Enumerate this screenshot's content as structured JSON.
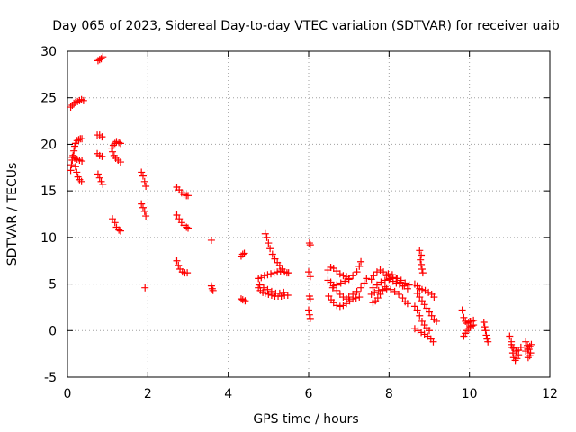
{
  "chart_data": {
    "type": "scatter",
    "title": "Day 065 of 2023, Sidereal Day-to-day VTEC variation (SDTVAR) for receiver uaib",
    "xlabel": "GPS time / hours",
    "ylabel": "SDTVAR / TECUs",
    "xlim": [
      0,
      12
    ],
    "ylim": [
      -5,
      30
    ],
    "xticks": [
      0,
      2,
      4,
      6,
      8,
      10,
      12
    ],
    "yticks": [
      -5,
      0,
      5,
      10,
      15,
      20,
      25,
      30
    ],
    "xtick_labels": [
      "0",
      "2",
      "4",
      "6",
      "8",
      "10",
      "12"
    ],
    "ytick_labels": [
      "-5",
      "0",
      "5",
      "10",
      "15",
      "20",
      "25",
      "30"
    ],
    "grid": true,
    "marker": "+",
    "marker_color": "#ff0000",
    "series": [
      {
        "name": "SDTVAR",
        "points": [
          [
            0.08,
            24.0
          ],
          [
            0.12,
            24.2
          ],
          [
            0.16,
            24.4
          ],
          [
            0.2,
            24.5
          ],
          [
            0.25,
            24.6
          ],
          [
            0.3,
            24.7
          ],
          [
            0.35,
            24.8
          ],
          [
            0.4,
            24.7
          ],
          [
            0.08,
            17.2
          ],
          [
            0.1,
            17.8
          ],
          [
            0.12,
            18.3
          ],
          [
            0.14,
            18.8
          ],
          [
            0.16,
            19.3
          ],
          [
            0.18,
            19.8
          ],
          [
            0.2,
            20.1
          ],
          [
            0.24,
            20.4
          ],
          [
            0.28,
            20.5
          ],
          [
            0.32,
            20.6
          ],
          [
            0.36,
            20.6
          ],
          [
            0.12,
            18.6
          ],
          [
            0.18,
            18.5
          ],
          [
            0.24,
            18.4
          ],
          [
            0.3,
            18.3
          ],
          [
            0.36,
            18.2
          ],
          [
            0.2,
            17.6
          ],
          [
            0.23,
            17.0
          ],
          [
            0.26,
            16.5
          ],
          [
            0.3,
            16.2
          ],
          [
            0.35,
            16.0
          ],
          [
            0.76,
            29.0
          ],
          [
            0.8,
            29.1
          ],
          [
            0.84,
            29.2
          ],
          [
            0.88,
            29.4
          ],
          [
            0.74,
            21.0
          ],
          [
            0.8,
            21.0
          ],
          [
            0.86,
            20.8
          ],
          [
            0.74,
            19.0
          ],
          [
            0.8,
            18.8
          ],
          [
            0.86,
            18.7
          ],
          [
            0.76,
            16.8
          ],
          [
            0.8,
            16.4
          ],
          [
            0.84,
            16.0
          ],
          [
            0.88,
            15.7
          ],
          [
            1.1,
            19.6
          ],
          [
            1.14,
            19.9
          ],
          [
            1.18,
            20.1
          ],
          [
            1.22,
            20.3
          ],
          [
            1.28,
            20.2
          ],
          [
            1.32,
            20.1
          ],
          [
            1.12,
            19.2
          ],
          [
            1.16,
            18.8
          ],
          [
            1.2,
            18.5
          ],
          [
            1.26,
            18.3
          ],
          [
            1.32,
            18.1
          ],
          [
            1.12,
            12.0
          ],
          [
            1.18,
            11.6
          ],
          [
            1.22,
            11.1
          ],
          [
            1.28,
            10.8
          ],
          [
            1.32,
            10.7
          ],
          [
            1.84,
            17.0
          ],
          [
            1.88,
            16.6
          ],
          [
            1.92,
            16.0
          ],
          [
            1.95,
            15.5
          ],
          [
            1.84,
            13.6
          ],
          [
            1.88,
            13.2
          ],
          [
            1.92,
            12.8
          ],
          [
            1.95,
            12.3
          ],
          [
            1.93,
            4.6
          ],
          [
            2.72,
            15.4
          ],
          [
            2.78,
            15.1
          ],
          [
            2.84,
            14.8
          ],
          [
            2.9,
            14.6
          ],
          [
            2.96,
            14.5
          ],
          [
            3.0,
            14.5
          ],
          [
            2.72,
            12.4
          ],
          [
            2.78,
            12.0
          ],
          [
            2.84,
            11.6
          ],
          [
            2.9,
            11.3
          ],
          [
            2.96,
            11.1
          ],
          [
            3.0,
            11.0
          ],
          [
            2.72,
            7.5
          ],
          [
            2.76,
            7.0
          ],
          [
            2.8,
            6.6
          ],
          [
            2.86,
            6.3
          ],
          [
            2.92,
            6.2
          ],
          [
            2.98,
            6.2
          ],
          [
            3.58,
            9.7
          ],
          [
            3.58,
            4.8
          ],
          [
            3.6,
            4.5
          ],
          [
            3.62,
            4.3
          ],
          [
            4.32,
            8.0
          ],
          [
            4.36,
            8.2
          ],
          [
            4.4,
            8.3
          ],
          [
            4.32,
            3.4
          ],
          [
            4.36,
            3.3
          ],
          [
            4.42,
            3.2
          ],
          [
            4.92,
            10.4
          ],
          [
            4.96,
            10.0
          ],
          [
            5.0,
            9.4
          ],
          [
            5.04,
            8.8
          ],
          [
            5.1,
            8.2
          ],
          [
            5.16,
            7.7
          ],
          [
            5.22,
            7.3
          ],
          [
            5.28,
            7.0
          ],
          [
            5.34,
            6.6
          ],
          [
            5.4,
            6.3
          ],
          [
            5.46,
            6.2
          ],
          [
            5.5,
            6.2
          ],
          [
            4.75,
            5.6
          ],
          [
            4.82,
            5.7
          ],
          [
            4.9,
            5.9
          ],
          [
            4.98,
            6.0
          ],
          [
            5.06,
            6.1
          ],
          [
            5.14,
            6.2
          ],
          [
            5.22,
            6.3
          ],
          [
            5.3,
            6.4
          ],
          [
            4.75,
            4.6
          ],
          [
            4.8,
            4.3
          ],
          [
            4.86,
            4.1
          ],
          [
            4.92,
            4.0
          ],
          [
            5.0,
            3.9
          ],
          [
            5.08,
            3.8
          ],
          [
            5.16,
            3.7
          ],
          [
            5.24,
            3.7
          ],
          [
            5.32,
            3.7
          ],
          [
            5.4,
            3.8
          ],
          [
            5.48,
            3.8
          ],
          [
            4.78,
            4.9
          ],
          [
            4.88,
            4.6
          ],
          [
            4.98,
            4.4
          ],
          [
            5.08,
            4.2
          ],
          [
            5.18,
            4.0
          ],
          [
            5.28,
            4.0
          ],
          [
            5.38,
            4.1
          ],
          [
            6.02,
            9.4
          ],
          [
            6.04,
            9.2
          ],
          [
            6.0,
            6.3
          ],
          [
            6.04,
            5.8
          ],
          [
            6.02,
            3.7
          ],
          [
            6.04,
            3.4
          ],
          [
            6.0,
            2.2
          ],
          [
            6.02,
            1.7
          ],
          [
            6.04,
            1.3
          ],
          [
            6.48,
            6.5
          ],
          [
            6.55,
            6.8
          ],
          [
            6.62,
            6.7
          ],
          [
            6.7,
            6.4
          ],
          [
            6.78,
            6.1
          ],
          [
            6.86,
            5.9
          ],
          [
            6.94,
            5.8
          ],
          [
            7.0,
            5.6
          ],
          [
            6.48,
            5.4
          ],
          [
            6.55,
            5.2
          ],
          [
            6.62,
            4.8
          ],
          [
            6.7,
            4.3
          ],
          [
            6.78,
            3.9
          ],
          [
            6.86,
            3.6
          ],
          [
            6.94,
            3.4
          ],
          [
            6.5,
            3.7
          ],
          [
            6.56,
            3.3
          ],
          [
            6.62,
            3.0
          ],
          [
            6.7,
            2.7
          ],
          [
            6.78,
            2.6
          ],
          [
            6.86,
            2.7
          ],
          [
            6.94,
            2.9
          ],
          [
            7.02,
            3.2
          ],
          [
            7.1,
            3.4
          ],
          [
            7.18,
            3.5
          ],
          [
            7.26,
            3.6
          ],
          [
            6.6,
            4.6
          ],
          [
            6.7,
            4.9
          ],
          [
            6.8,
            5.1
          ],
          [
            6.9,
            5.3
          ],
          [
            7.0,
            5.5
          ],
          [
            7.1,
            5.9
          ],
          [
            7.2,
            6.3
          ],
          [
            7.26,
            6.9
          ],
          [
            7.3,
            7.4
          ],
          [
            7.0,
            3.6
          ],
          [
            7.1,
            3.9
          ],
          [
            7.2,
            4.2
          ],
          [
            7.3,
            4.6
          ],
          [
            7.38,
            5.1
          ],
          [
            7.44,
            5.6
          ],
          [
            7.56,
            5.5
          ],
          [
            7.62,
            5.9
          ],
          [
            7.7,
            6.3
          ],
          [
            7.78,
            6.5
          ],
          [
            7.86,
            6.3
          ],
          [
            7.94,
            5.9
          ],
          [
            8.02,
            5.6
          ],
          [
            8.1,
            5.3
          ],
          [
            8.18,
            5.1
          ],
          [
            8.26,
            5.0
          ],
          [
            8.34,
            4.8
          ],
          [
            7.6,
            4.6
          ],
          [
            7.7,
            4.9
          ],
          [
            7.8,
            5.2
          ],
          [
            7.9,
            5.4
          ],
          [
            8.0,
            5.5
          ],
          [
            8.1,
            5.7
          ],
          [
            8.2,
            5.6
          ],
          [
            8.3,
            5.4
          ],
          [
            8.4,
            5.1
          ],
          [
            8.5,
            4.9
          ],
          [
            7.56,
            3.9
          ],
          [
            7.64,
            4.1
          ],
          [
            7.74,
            4.3
          ],
          [
            7.84,
            4.4
          ],
          [
            7.94,
            4.5
          ],
          [
            8.04,
            4.4
          ],
          [
            8.14,
            4.2
          ],
          [
            8.24,
            3.9
          ],
          [
            8.34,
            3.5
          ],
          [
            8.4,
            3.1
          ],
          [
            8.46,
            2.9
          ],
          [
            7.6,
            3.0
          ],
          [
            7.66,
            3.2
          ],
          [
            7.72,
            3.5
          ],
          [
            7.78,
            3.9
          ],
          [
            7.84,
            4.3
          ],
          [
            7.9,
            4.7
          ],
          [
            7.98,
            6.1
          ],
          [
            8.08,
            6.0
          ],
          [
            8.18,
            5.6
          ],
          [
            8.28,
            5.2
          ],
          [
            8.38,
            4.8
          ],
          [
            8.46,
            4.5
          ],
          [
            8.64,
            5.0
          ],
          [
            8.7,
            4.8
          ],
          [
            8.76,
            4.5
          ],
          [
            8.82,
            4.4
          ],
          [
            8.9,
            4.3
          ],
          [
            8.98,
            4.1
          ],
          [
            9.06,
            3.9
          ],
          [
            9.12,
            3.6
          ],
          [
            8.7,
            4.0
          ],
          [
            8.76,
            3.6
          ],
          [
            8.82,
            3.2
          ],
          [
            8.88,
            2.8
          ],
          [
            8.94,
            2.4
          ],
          [
            9.0,
            2.0
          ],
          [
            9.06,
            1.6
          ],
          [
            9.12,
            1.2
          ],
          [
            9.18,
            1.0
          ],
          [
            8.64,
            2.6
          ],
          [
            8.7,
            2.2
          ],
          [
            8.76,
            1.6
          ],
          [
            8.82,
            1.0
          ],
          [
            8.88,
            0.6
          ],
          [
            8.94,
            0.3
          ],
          [
            9.0,
            0.0
          ],
          [
            8.64,
            0.2
          ],
          [
            8.72,
            0.0
          ],
          [
            8.8,
            -0.2
          ],
          [
            8.88,
            -0.4
          ],
          [
            8.96,
            -0.6
          ],
          [
            9.04,
            -0.9
          ],
          [
            9.1,
            -1.2
          ],
          [
            8.76,
            8.6
          ],
          [
            8.8,
            8.1
          ],
          [
            8.78,
            7.6
          ],
          [
            8.8,
            7.1
          ],
          [
            8.82,
            6.6
          ],
          [
            8.84,
            6.2
          ],
          [
            9.82,
            2.2
          ],
          [
            9.86,
            1.4
          ],
          [
            9.9,
            1.0
          ],
          [
            9.94,
            0.8
          ],
          [
            9.98,
            0.9
          ],
          [
            10.02,
            1.0
          ],
          [
            10.06,
            1.0
          ],
          [
            10.1,
            1.1
          ],
          [
            9.86,
            -0.6
          ],
          [
            9.9,
            -0.3
          ],
          [
            9.94,
            0.0
          ],
          [
            9.98,
            0.2
          ],
          [
            10.02,
            0.4
          ],
          [
            10.06,
            0.5
          ],
          [
            10.1,
            0.6
          ],
          [
            10.36,
            0.9
          ],
          [
            10.38,
            0.4
          ],
          [
            10.4,
            0.0
          ],
          [
            10.42,
            -0.5
          ],
          [
            10.44,
            -0.9
          ],
          [
            10.46,
            -1.2
          ],
          [
            11.0,
            -0.6
          ],
          [
            11.04,
            -1.2
          ],
          [
            11.06,
            -1.8
          ],
          [
            11.08,
            -2.4
          ],
          [
            11.1,
            -2.9
          ],
          [
            11.14,
            -3.2
          ],
          [
            11.18,
            -3.0
          ],
          [
            11.22,
            -2.6
          ],
          [
            11.04,
            -1.5
          ],
          [
            11.1,
            -1.9
          ],
          [
            11.16,
            -2.2
          ],
          [
            11.22,
            -2.1
          ],
          [
            11.28,
            -1.8
          ],
          [
            11.4,
            -1.2
          ],
          [
            11.44,
            -1.6
          ],
          [
            11.48,
            -2.0
          ],
          [
            11.52,
            -2.4
          ],
          [
            11.5,
            -2.7
          ],
          [
            11.46,
            -2.9
          ],
          [
            11.4,
            -2.2
          ],
          [
            11.45,
            -2.0
          ],
          [
            11.5,
            -1.7
          ],
          [
            11.54,
            -1.5
          ]
        ]
      }
    ]
  }
}
